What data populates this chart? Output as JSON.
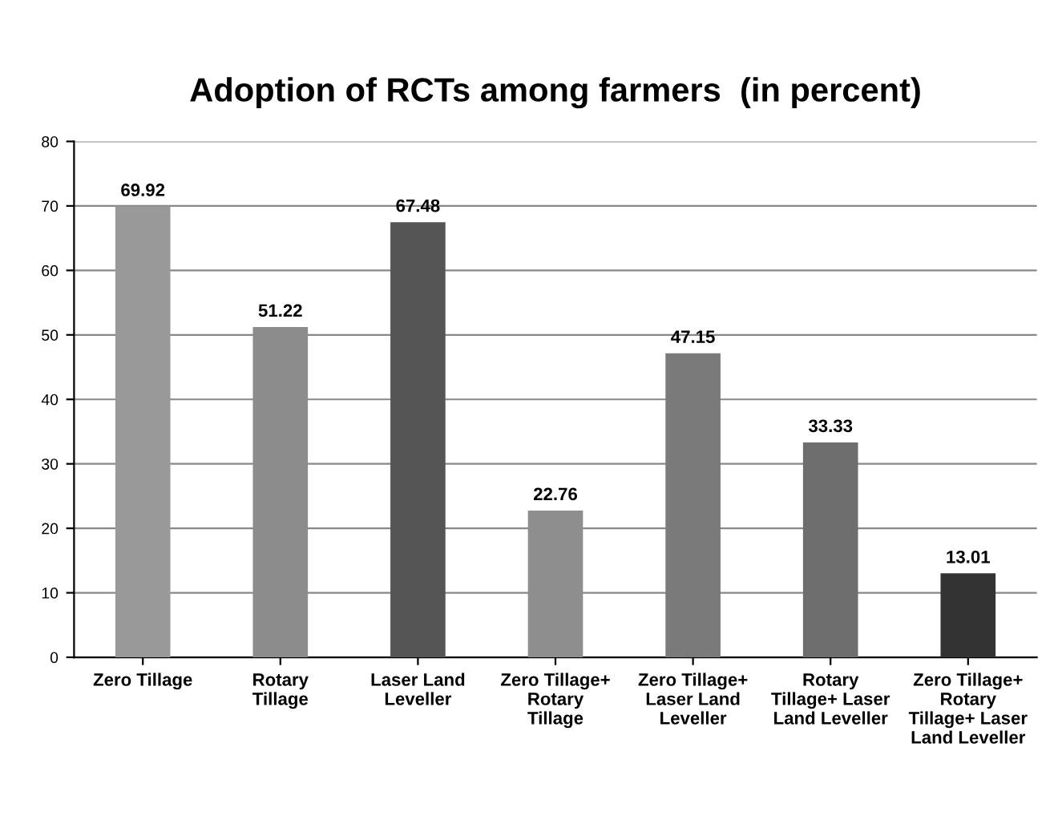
{
  "chart_data": {
    "type": "bar",
    "title": "Adoption of RCTs among farmers  (in percent)",
    "categories": [
      "Zero Tillage",
      "Rotary\nTillage",
      "Laser Land\nLeveller",
      "Zero Tillage+\nRotary\nTillage",
      "Zero Tillage+\nLaser Land\nLeveller",
      "Rotary\nTillage+ Laser\nLand Leveller",
      "Zero Tillage+\nRotary\nTillage+ Laser\nLand Leveller"
    ],
    "values": [
      69.92,
      51.22,
      67.48,
      22.76,
      47.15,
      33.33,
      13.01
    ],
    "colors": [
      "#999999",
      "#8c8c8c",
      "#555555",
      "#8e8e8e",
      "#7a7a7a",
      "#6e6e6e",
      "#333333"
    ],
    "ylim": [
      0,
      80
    ],
    "yticks": [
      0,
      10,
      20,
      30,
      40,
      50,
      60,
      70,
      80
    ],
    "grid": "y",
    "data_labels": true
  }
}
